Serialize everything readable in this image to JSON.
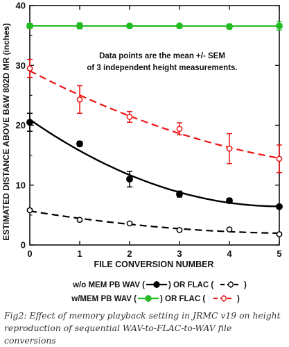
{
  "chart_data": {
    "type": "scatter",
    "title": "",
    "xlabel": "FILE CONVERSION NUMBER",
    "ylabel": "ESTIMATED DISTANCE ABOVE B&W 802D MR (inches)",
    "xlim": [
      0,
      5
    ],
    "ylim": [
      0,
      40
    ],
    "x_ticks": [
      "0",
      "1",
      "2",
      "3",
      "4",
      "5"
    ],
    "y_ticks": [
      "0",
      "10",
      "20",
      "30",
      "40"
    ],
    "annotation": [
      "Data points are the mean +/- SEM",
      "of 3 independent height measurements."
    ],
    "grid": false,
    "series": [
      {
        "name": "w/o MEM PB WAV",
        "color": "#000000",
        "marker": "filled-circle",
        "line": "solid",
        "x": [
          0,
          1,
          2,
          3,
          4,
          5
        ],
        "y": [
          20.5,
          16.9,
          11.0,
          8.5,
          7.4,
          6.4
        ],
        "err": [
          1.5,
          0.4,
          1.3,
          0.5,
          0.4,
          0.2
        ]
      },
      {
        "name": "FLAC",
        "color": "#000000",
        "marker": "open-circle",
        "line": "dashed",
        "x": [
          0,
          1,
          2,
          3,
          4,
          5
        ],
        "y": [
          5.8,
          4.2,
          3.6,
          2.5,
          2.6,
          1.8
        ],
        "err": [
          0.2,
          0.2,
          0.1,
          0.2,
          0.2,
          0.2
        ]
      },
      {
        "name": "w/MEM PB WAV",
        "color": "#22bb22",
        "marker": "filled-circle",
        "line": "solid",
        "x": [
          0,
          1,
          2,
          3,
          4,
          5
        ],
        "y": [
          36.6,
          36.6,
          36.6,
          36.6,
          36.5,
          36.6
        ],
        "err": [
          0.4,
          0.5,
          0.3,
          0.3,
          0.4,
          0.7
        ]
      },
      {
        "name": "FLAC",
        "color": "#ee1111",
        "marker": "open-circle",
        "line": "dashed",
        "x": [
          0,
          1,
          2,
          3,
          4,
          5
        ],
        "y": [
          29.5,
          24.3,
          21.4,
          19.4,
          16.1,
          14.4
        ],
        "err": [
          1.5,
          2.3,
          0.9,
          1.0,
          2.5,
          2.3
        ]
      }
    ],
    "legend": {
      "placement": "bottom",
      "row1": {
        "pre": "w/o MEM PB WAV (",
        "mid": ") OR FLAC (",
        "post": ")"
      },
      "row2": {
        "pre": "w/MEM PB WAV (",
        "mid": ") OR FLAC (",
        "post": ")"
      }
    }
  },
  "caption": "Fig2: Effect of memory playback setting in JRMC v19 on height reproduction of sequential WAV-to-FLAC-to-WAV file conversions"
}
